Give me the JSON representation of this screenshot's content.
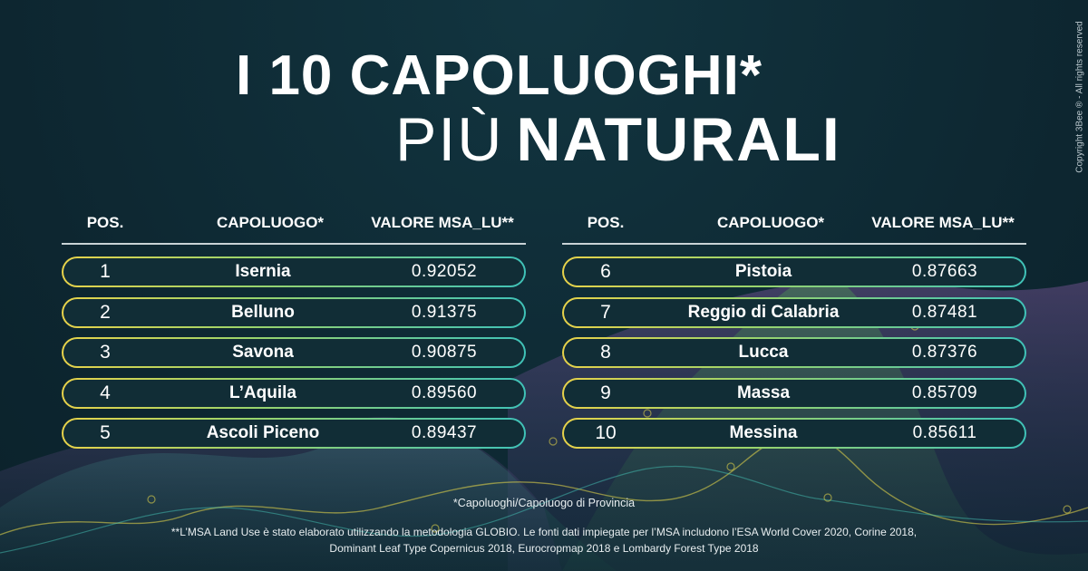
{
  "title": {
    "line1": "I 10 CAPOLUOGHI*",
    "line2_light": "PIÙ",
    "line2_bold": "NATURALI"
  },
  "copyright": "Copyright 3Bee ® - All rights reserved",
  "headers": {
    "pos": "POS.",
    "name": "CAPOLUOGO*",
    "value": "VALORE MSA_LU**"
  },
  "left_rows": [
    {
      "pos": "1",
      "name": "Isernia",
      "value": "0.92052"
    },
    {
      "pos": "2",
      "name": "Belluno",
      "value": "0.91375"
    },
    {
      "pos": "3",
      "name": "Savona",
      "value": "0.90875"
    },
    {
      "pos": "4",
      "name": "L’Aquila",
      "value": "0.89560"
    },
    {
      "pos": "5",
      "name": "Ascoli Piceno",
      "value": "0.89437"
    }
  ],
  "right_rows": [
    {
      "pos": "6",
      "name": "Pistoia",
      "value": "0.87663"
    },
    {
      "pos": "7",
      "name": "Reggio di Calabria",
      "value": "0.87481"
    },
    {
      "pos": "8",
      "name": "Lucca",
      "value": "0.87376"
    },
    {
      "pos": "9",
      "name": "Massa",
      "value": "0.85709"
    },
    {
      "pos": "10",
      "name": "Messina",
      "value": "0.85611"
    }
  ],
  "footnotes": {
    "capoluogo": "*Capoluoghi/Capoluogo di Provincia",
    "msa_line1": "**L’MSA Land Use è stato elaborato utilizzando la metodologia GLOBIO. Le fonti dati impiegate per l’MSA includono l’ESA World Cover 2020, Corine 2018,",
    "msa_line2": "Dominant Leaf Type Copernicus 2018, Eurocropmap 2018 e Lombardy Forest Type 2018"
  },
  "colors": {
    "background": "#0e2a33",
    "ring_start": "#e7d24a",
    "ring_end": "#3fc2b8"
  }
}
